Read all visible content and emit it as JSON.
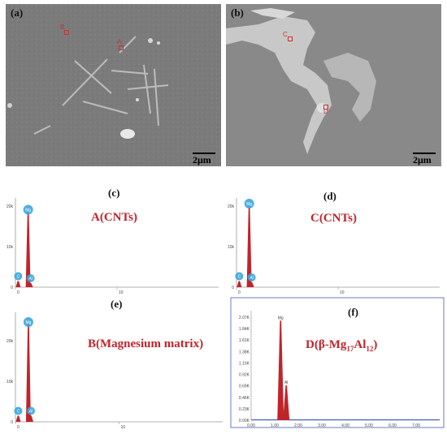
{
  "panels": {
    "a": {
      "label": "(a)",
      "scale": "2μm",
      "markers": [
        "B",
        "A"
      ]
    },
    "b": {
      "label": "(b)",
      "scale": "2μm",
      "markers": [
        "C",
        "D"
      ]
    },
    "c": {
      "label": "(c)",
      "title": "A(CNTs)",
      "y_ticks": [
        "20k",
        "10k",
        "0"
      ],
      "x_ticks": [
        "0",
        "10"
      ],
      "peaks": [
        "C",
        "Mg",
        "Al"
      ]
    },
    "d": {
      "label": "(d)",
      "title": "C(CNTs)",
      "y_ticks": [
        "20k",
        "10k",
        "0"
      ],
      "x_ticks": [
        "0",
        "10"
      ],
      "peaks": [
        "C",
        "Mg",
        "Al"
      ]
    },
    "e": {
      "label": "(e)",
      "title": "B(Magnesium matrix)",
      "y_ticks": [
        "20k",
        "10k",
        "0"
      ],
      "x_ticks": [
        "0",
        "10"
      ],
      "peaks": [
        "C",
        "Mg",
        "Al"
      ]
    },
    "f": {
      "label": "(f)",
      "title_pre": "D(β-Mg",
      "title_sub1": "17",
      "title_mid": "Al",
      "title_sub2": "12",
      "title_post": ")",
      "y_ticks": [
        "2.07K",
        "1.84K",
        "1.61K",
        "1.38K",
        "1.15K",
        "0.92K",
        "0.69K",
        "0.46K",
        "0.23K",
        "0.00K"
      ],
      "x_ticks": [
        "0.00",
        "1.00",
        "2.00",
        "3.00",
        "4.00",
        "5.00",
        "6.00",
        "7.00"
      ],
      "peaks": [
        "Mg",
        "Al"
      ]
    }
  },
  "chart_data": [
    {
      "type": "line",
      "panel": "c",
      "series": [
        {
          "name": "A(CNTs)",
          "x": [
            0.27,
            1.25,
            1.49
          ],
          "values": [
            1.5,
            18.5,
            1.0
          ]
        }
      ],
      "ylim": [
        0,
        22
      ],
      "xlim": [
        0,
        20
      ]
    },
    {
      "type": "line",
      "panel": "d",
      "series": [
        {
          "name": "C(CNTs)",
          "x": [
            0.27,
            1.25,
            1.49
          ],
          "values": [
            1.5,
            20,
            1.2
          ]
        }
      ],
      "ylim": [
        0,
        22
      ],
      "xlim": [
        0,
        20
      ]
    },
    {
      "type": "line",
      "panel": "e",
      "series": [
        {
          "name": "B(Magnesium matrix)",
          "x": [
            0.27,
            1.25,
            1.49
          ],
          "values": [
            1.5,
            24,
            1.5
          ]
        }
      ],
      "ylim": [
        0,
        27
      ],
      "xlim": [
        0,
        20
      ]
    },
    {
      "type": "line",
      "panel": "f",
      "series": [
        {
          "name": "D(β-Mg17Al12)",
          "x": [
            1.25,
            1.49
          ],
          "values": [
            2.0,
            0.7
          ]
        }
      ],
      "ylim": [
        0,
        2.2
      ],
      "xlim": [
        0,
        8
      ]
    }
  ],
  "colors": {
    "peak": "#c0242b",
    "title": "#c0242b",
    "marker": "#c83232"
  }
}
